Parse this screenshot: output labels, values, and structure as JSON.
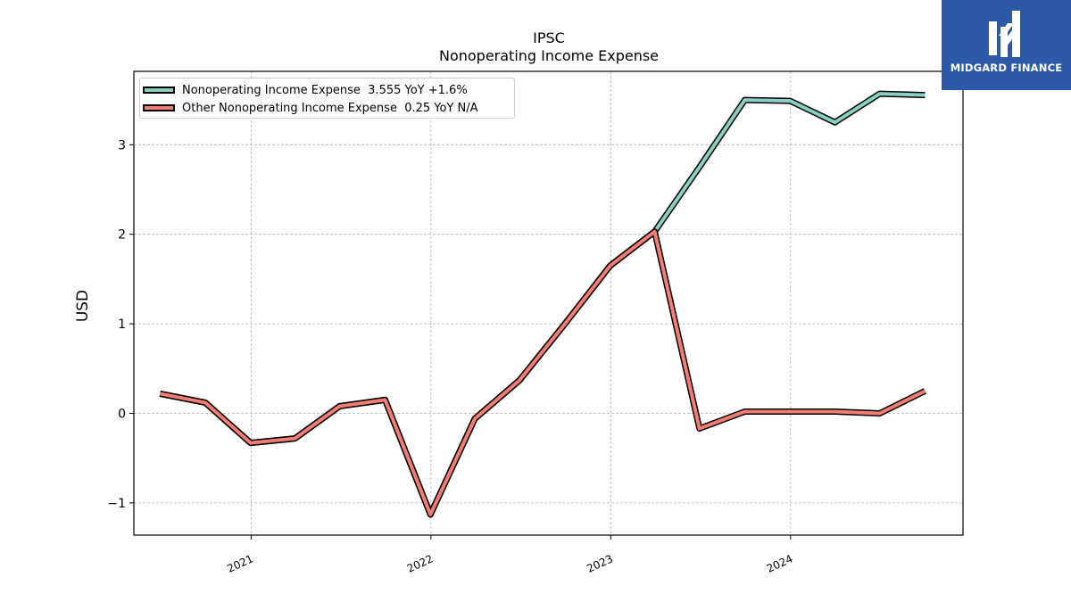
{
  "chart_data": {
    "type": "line",
    "title": "IPSC",
    "subtitle": "Nonoperating Income Expense",
    "ylabel": "USD",
    "xlabel": "",
    "ylim": [
      -1.36,
      3.82
    ],
    "xlim": [
      "2020-05-08",
      "2024-12-16"
    ],
    "yticks": [
      -1,
      0,
      1,
      2,
      3
    ],
    "ytick_labels": [
      "−1",
      "0",
      "1",
      "2",
      "3"
    ],
    "xticks": [
      "2021-01-01",
      "2022-01-01",
      "2023-01-01",
      "2024-01-01"
    ],
    "xtick_labels": [
      "2021",
      "2022",
      "2023",
      "2024"
    ],
    "grid": true,
    "legend_position": "top-left",
    "x": [
      "2020-06-30",
      "2020-09-30",
      "2020-12-31",
      "2021-03-31",
      "2021-06-30",
      "2021-09-30",
      "2021-12-31",
      "2022-03-31",
      "2022-06-30",
      "2022-09-30",
      "2022-12-31",
      "2023-03-31",
      "2023-06-30",
      "2023-09-30",
      "2023-12-31",
      "2024-03-31",
      "2024-06-30",
      "2024-09-30"
    ],
    "series": [
      {
        "name": "Nonoperating Income Expense",
        "legend_label": "Nonoperating Income Expense  3.555 YoY +1.6%",
        "color": "#88d0c2",
        "values": [
          0.22,
          0.12,
          -0.33,
          -0.28,
          0.08,
          0.15,
          -1.13,
          -0.06,
          0.37,
          1.0,
          1.65,
          2.03,
          2.75,
          3.5,
          3.49,
          3.25,
          3.57,
          3.555
        ]
      },
      {
        "name": "Other Nonoperating Income Expense",
        "legend_label": "Other Nonoperating Income Expense  0.25 YoY N/A",
        "color": "#f47c72",
        "values": [
          0.22,
          0.12,
          -0.33,
          -0.28,
          0.08,
          0.15,
          -1.13,
          -0.06,
          0.37,
          1.0,
          1.65,
          2.03,
          -0.17,
          0.02,
          0.02,
          0.02,
          0.0,
          0.25
        ]
      }
    ]
  },
  "logo": {
    "text": "MIDGARD FINANCE",
    "color": "#2d5aa8"
  }
}
